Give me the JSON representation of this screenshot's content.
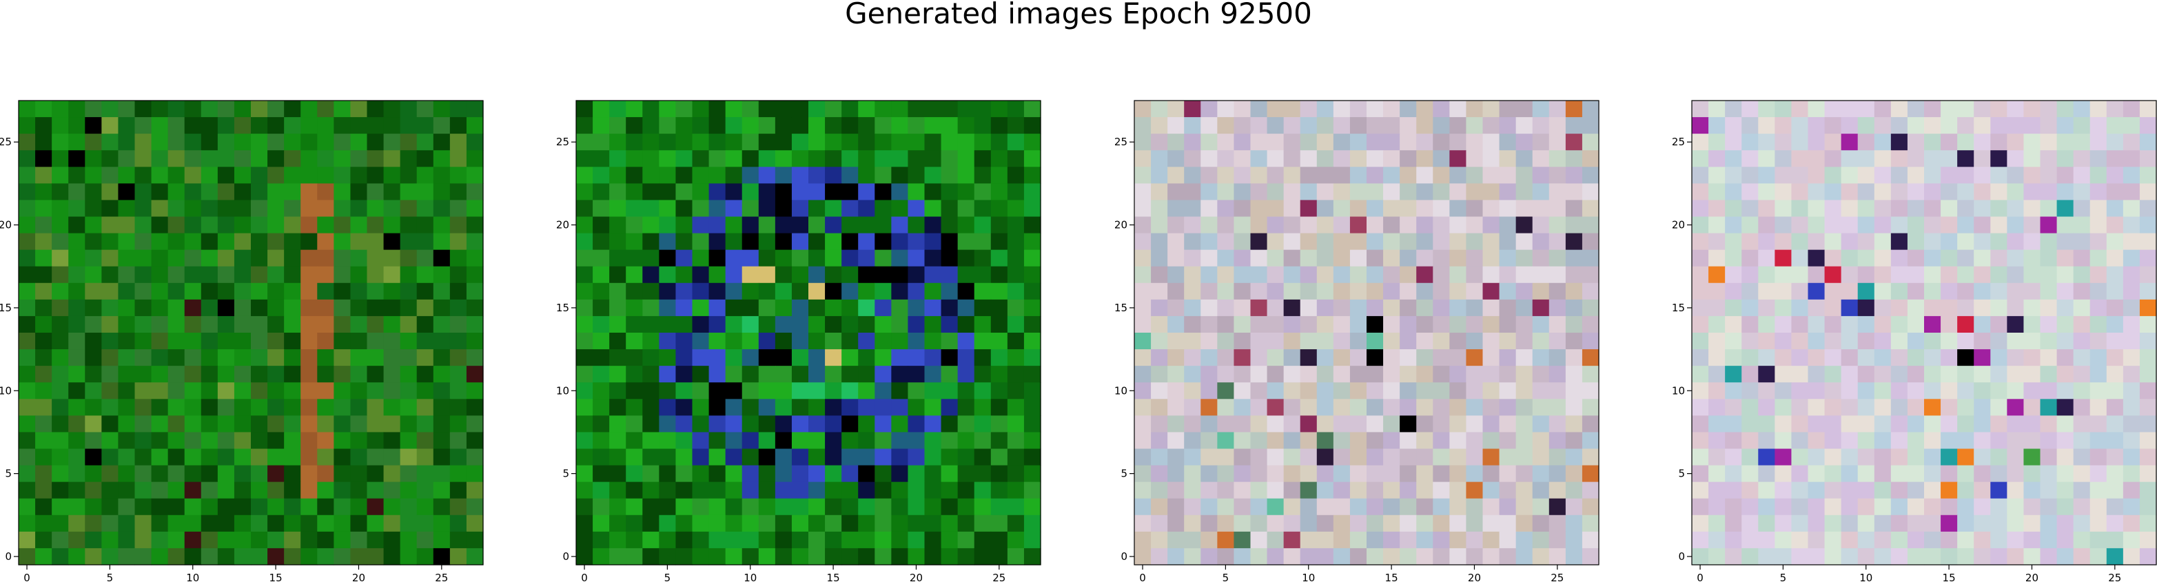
{
  "figure": {
    "title": "Generated images Epoch 92500"
  },
  "chart_data": [
    {
      "type": "heatmap",
      "content": "28x28 RGB generated image, predominantly dark and medium green noisy pixels with a faint vertical orange-brown stroke",
      "palette": [
        "#0b5e0b",
        "#0d7a0d",
        "#138f13",
        "#1a9c1a",
        "#2f7d2f",
        "#3a6a1e",
        "#064806",
        "#1c8a24",
        "#5a8a2a",
        "#0e6b1a"
      ],
      "accents": [
        "#9c5a2a",
        "#b06a30",
        "#3c1212",
        "#000000",
        "#7aa03a"
      ],
      "xticks": [
        0,
        5,
        10,
        15,
        20,
        25
      ],
      "yticks": [
        0,
        5,
        10,
        15,
        20,
        25
      ],
      "xlim": [
        -0.5,
        27.5
      ],
      "ylim": [
        27.5,
        -0.5
      ]
    },
    {
      "type": "heatmap",
      "content": "28x28 RGB generated image, green background with a ring of blue, navy and dark pixels in the center region",
      "palette": [
        "#0b5e0b",
        "#0d7a0d",
        "#138f13",
        "#1fae1f",
        "#0a6e10",
        "#2a9a2a",
        "#064806",
        "#12a030"
      ],
      "accents": [
        "#1a2a8a",
        "#2c3fb0",
        "#0a1040",
        "#1e6080",
        "#3a50d0",
        "#000000",
        "#20c060",
        "#d8c070"
      ],
      "xticks": [
        0,
        5,
        10,
        15,
        20,
        25
      ],
      "yticks": [
        0,
        5,
        10,
        15,
        20,
        25
      ],
      "xlim": [
        -0.5,
        27.5
      ],
      "ylim": [
        27.5,
        -0.5
      ]
    },
    {
      "type": "heatmap",
      "content": "28x28 RGB generated image, pastel multicolor noise (pinks, lavenders, greys, light greens) with scattered darker pixels",
      "palette": [
        "#c9b8c8",
        "#d4c4d6",
        "#b8c8c0",
        "#e0d0d8",
        "#c0b0d0",
        "#b0c8d8",
        "#d8d0c0",
        "#c8d8c8",
        "#a8b8c8",
        "#d0c0b0",
        "#e4dce4",
        "#b8a8b8"
      ],
      "accents": [
        "#2a1a3a",
        "#8a2a5a",
        "#4a7a5a",
        "#d07030",
        "#000000",
        "#60c0a0",
        "#a04060"
      ],
      "xticks": [
        0,
        5,
        10,
        15,
        20,
        25
      ],
      "yticks": [
        0,
        5,
        10,
        15,
        20,
        25
      ],
      "xlim": [
        -0.5,
        27.5
      ],
      "ylim": [
        27.5,
        -0.5
      ]
    },
    {
      "type": "heatmap",
      "content": "28x28 RGB generated image, pastel multicolor noise (pinks, cyans, lavenders, light greens) with scattered saturated and dark pixels",
      "palette": [
        "#d8c8d8",
        "#c8d8e0",
        "#e0d0e8",
        "#c8e0d0",
        "#d0b8d0",
        "#b8d0e0",
        "#e8e0d8",
        "#c0c8d8",
        "#d8e8d8",
        "#e0c8d0",
        "#bcd8cc",
        "#d4c0e0"
      ],
      "accents": [
        "#000000",
        "#2a1a4a",
        "#d02040",
        "#40a040",
        "#f08020",
        "#3040c0",
        "#a020a0",
        "#20a0a0"
      ],
      "xticks": [
        0,
        5,
        10,
        15,
        20,
        25
      ],
      "yticks": [
        0,
        5,
        10,
        15,
        20,
        25
      ],
      "xlim": [
        -0.5,
        27.5
      ],
      "ylim": [
        27.5,
        -0.5
      ]
    }
  ]
}
